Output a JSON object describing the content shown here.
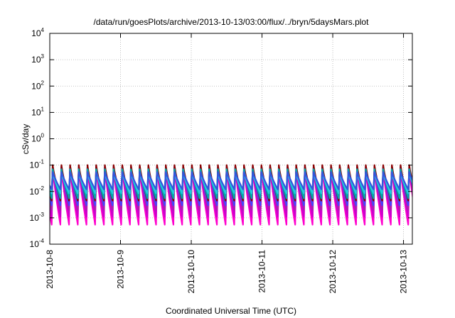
{
  "chart_data": {
    "type": "line",
    "title": "/data/run/goesPlots/archive/2013-10-13/03:00/flux/../bryn/5daysMars.plot",
    "xlabel": "Coordinated Universal Time (UTC)",
    "ylabel": "cSv/day",
    "x_range": [
      "2013-10-08",
      "2013-10-13 03:00"
    ],
    "x_ticks": [
      "2013-10-8",
      "2013-10-9",
      "2013-10-10",
      "2013-10-11",
      "2013-10-12",
      "2013-10-13"
    ],
    "y_scale": "log",
    "ylim": [
      0.0001,
      10000
    ],
    "y_ticks": [
      {
        "base": "10",
        "exp": "-4"
      },
      {
        "base": "10",
        "exp": "-3"
      },
      {
        "base": "10",
        "exp": "-2"
      },
      {
        "base": "10",
        "exp": "-1"
      },
      {
        "base": "10",
        "exp": "0"
      },
      {
        "base": "10",
        "exp": "1"
      },
      {
        "base": "10",
        "exp": "2"
      },
      {
        "base": "10",
        "exp": "3"
      },
      {
        "base": "10",
        "exp": "4"
      }
    ],
    "grid": true,
    "legend": "none",
    "pattern": {
      "period_hours": 2.95,
      "first_peak_hours": 1.0
    },
    "series": [
      {
        "color": "#ff00cc",
        "peak": 0.075,
        "trough": 0.00055
      },
      {
        "color": "#cc00cc",
        "peak": 0.08,
        "trough": 0.0011
      },
      {
        "color": "#aa22aa",
        "peak": 0.085,
        "trough": 0.002
      },
      {
        "color": "#4444ff",
        "peak": 0.09,
        "trough": 0.003
      },
      {
        "color": "#8b0000",
        "peak": 0.1,
        "trough": 0.0045
      },
      {
        "color": "#00aaaa",
        "peak": 0.07,
        "trough": 0.0055
      },
      {
        "color": "#22ccdd",
        "peak": 0.05,
        "trough": 0.0085
      },
      {
        "color": "#3355dd",
        "peak": 0.055,
        "trough": 0.012
      }
    ]
  }
}
